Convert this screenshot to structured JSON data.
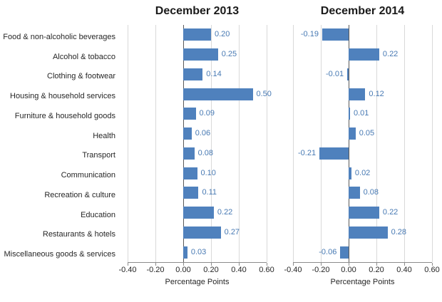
{
  "chart_data": {
    "type": "bar",
    "orientation": "horizontal",
    "categories": [
      "Food & non-alcoholic beverages",
      "Alcohol & tobacco",
      "Clothing & footwear",
      "Housing & household services",
      "Furniture & household goods",
      "Health",
      "Transport",
      "Communication",
      "Recreation & culture",
      "Education",
      "Restaurants & hotels",
      "Miscellaneous goods & services"
    ],
    "series": [
      {
        "name": "December 2013",
        "values": [
          0.2,
          0.25,
          0.14,
          0.5,
          0.09,
          0.06,
          0.08,
          0.1,
          0.11,
          0.22,
          0.27,
          0.03
        ]
      },
      {
        "name": "December 2014",
        "values": [
          -0.19,
          0.22,
          -0.01,
          0.12,
          0.01,
          0.05,
          -0.21,
          0.02,
          0.08,
          0.22,
          0.28,
          -0.06
        ]
      }
    ],
    "xlabel": "Percentage Points",
    "xlim": [
      -0.4,
      0.6
    ],
    "xticks": [
      -0.4,
      -0.2,
      0.0,
      0.2,
      0.4,
      0.6
    ],
    "xtick_labels": [
      "-0.40",
      "-0.20",
      "0.00",
      "0.20",
      "0.40",
      "0.60"
    ],
    "grid": true,
    "legend_position": "none",
    "bar_color": "#4f81bd",
    "value_label_color": "#4779b3",
    "value_label_format": "0.00"
  }
}
